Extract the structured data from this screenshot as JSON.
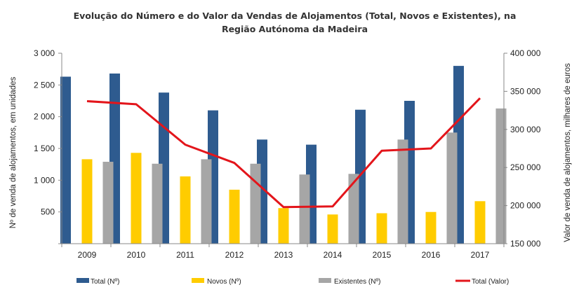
{
  "chart_data": {
    "type": "bar",
    "title_lines": [
      "Evolução do Número e do Valor da Vendas de Alojamentos (Total, Novos e Existentes), na",
      "Região Autónoma da Madeira"
    ],
    "categories": [
      "2009",
      "2010",
      "2011",
      "2012",
      "2013",
      "2014",
      "2015",
      "2016",
      "2017"
    ],
    "series": [
      {
        "name": "Total (Nº)",
        "kind": "bar",
        "axis": "left",
        "color": "#2e5b8f",
        "values": [
          2630,
          2680,
          2380,
          2100,
          1640,
          1560,
          2110,
          2250,
          2800
        ]
      },
      {
        "name": "Novos (Nº)",
        "kind": "bar",
        "axis": "left",
        "color": "#ffcc00",
        "values": [
          1330,
          1430,
          1060,
          850,
          560,
          460,
          480,
          500,
          670
        ]
      },
      {
        "name": "Existentes (Nº)",
        "kind": "bar",
        "axis": "left",
        "color": "#a6a6a6",
        "values": [
          1290,
          1260,
          1330,
          1260,
          1090,
          1100,
          1640,
          1750,
          2130
        ]
      },
      {
        "name": "Total (Valor)",
        "kind": "line",
        "axis": "right",
        "color": "#e3151b",
        "values": [
          337000,
          333000,
          280000,
          256000,
          198000,
          199000,
          272000,
          275000,
          341000
        ]
      }
    ],
    "ylabel": "Nº de venda de alojamentos, em unidades",
    "y2label": "Valor de venda de alojamentos, milhares de euros",
    "ylim": [
      0,
      3000
    ],
    "yticks": [
      500,
      1000,
      1500,
      2000,
      2500,
      3000
    ],
    "ytick_labels": [
      "500",
      "1 000",
      "1 500",
      "2 000",
      "2 500",
      "3 000"
    ],
    "y2lim": [
      150000,
      400000
    ],
    "y2ticks": [
      150000,
      200000,
      250000,
      300000,
      350000,
      400000
    ],
    "y2tick_labels": [
      "150 000",
      "200 000",
      "250 000",
      "300 000",
      "350 000",
      "400 000"
    ],
    "grid": false,
    "legend_position": "bottom"
  }
}
